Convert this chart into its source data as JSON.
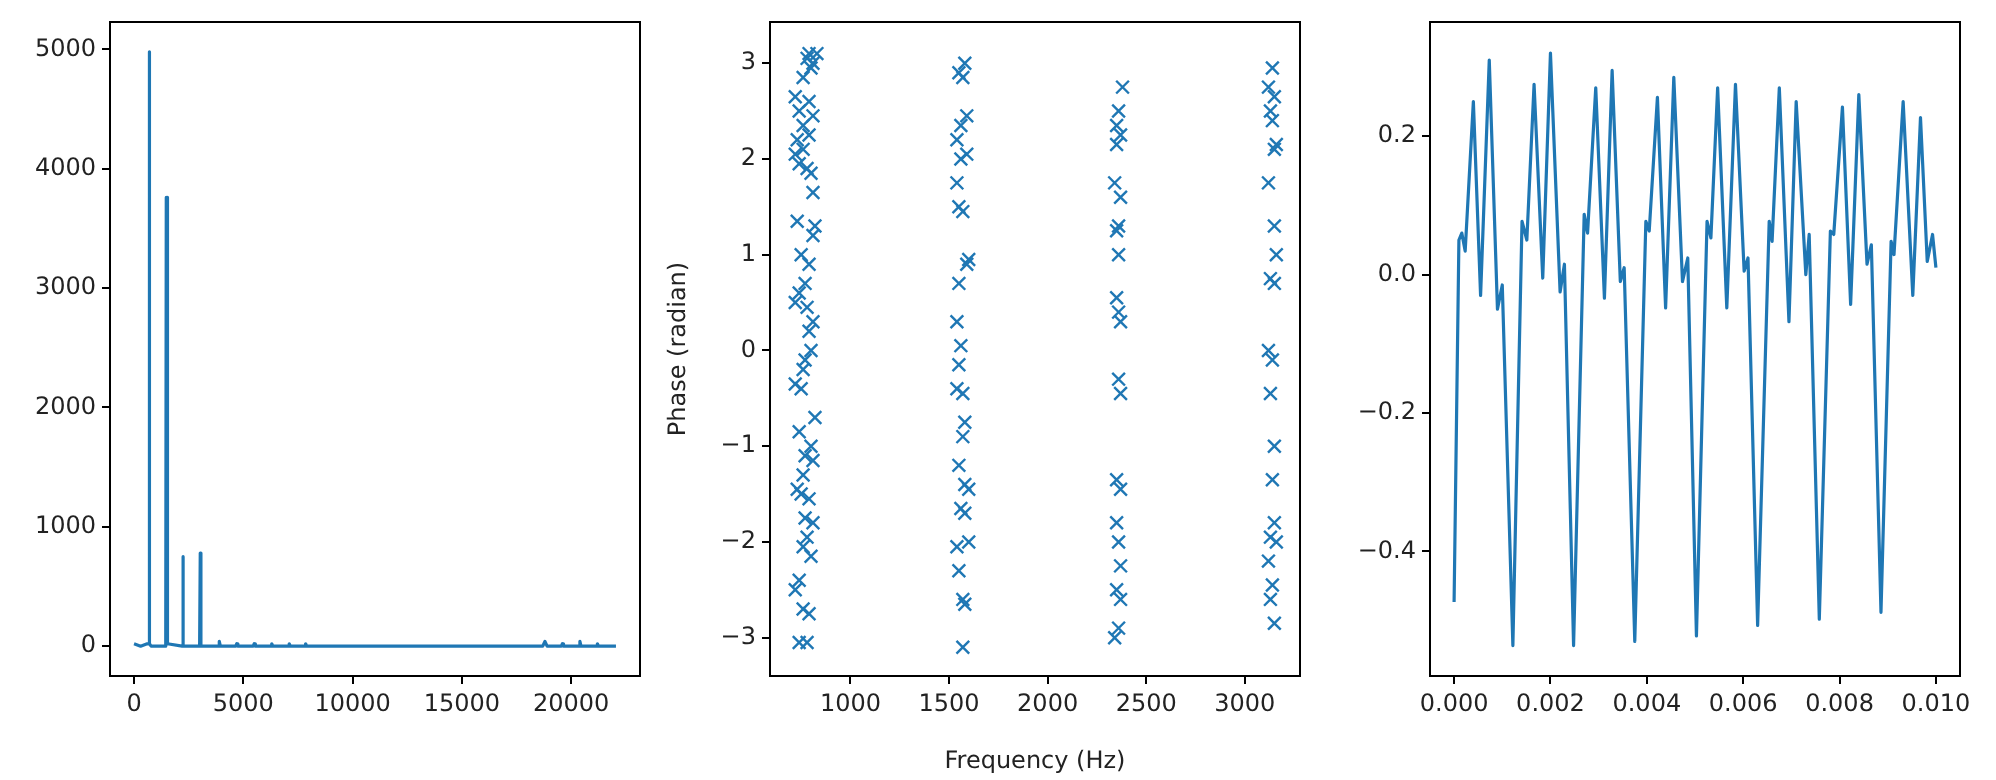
{
  "chart_data": [
    {
      "type": "line",
      "color": "#1f77b4",
      "xlim": [
        -1100,
        23150
      ],
      "ylim": [
        -250,
        5230
      ],
      "xticks": [
        0,
        5000,
        10000,
        15000,
        20000
      ],
      "yticks": [
        0,
        1000,
        2000,
        3000,
        4000,
        5000
      ],
      "x": [
        0,
        300,
        600,
        660,
        690,
        720,
        780,
        1400,
        1450,
        1475,
        1530,
        2200,
        2230,
        2260,
        3000,
        3030,
        3060,
        3850,
        3900,
        3950,
        4650,
        4700,
        4750,
        5450,
        5500,
        5550,
        6250,
        6300,
        6350,
        7050,
        7100,
        7150,
        7800,
        7850,
        7900,
        8600,
        18700,
        18800,
        18900,
        19550,
        19600,
        19650,
        20350,
        20400,
        20450,
        21150,
        21200,
        21250,
        22050
      ],
      "values": [
        20,
        0,
        20,
        20,
        4980,
        20,
        0,
        0,
        20,
        3760,
        20,
        0,
        750,
        0,
        0,
        780,
        0,
        0,
        40,
        0,
        0,
        20,
        0,
        0,
        20,
        0,
        0,
        20,
        0,
        0,
        20,
        0,
        0,
        20,
        0,
        0,
        0,
        40,
        0,
        0,
        20,
        0,
        0,
        40,
        0,
        0,
        20,
        0,
        0
      ]
    },
    {
      "type": "scatter",
      "color": "#1f77b4",
      "marker": "cross",
      "xlabel": "Frequency (Hz)",
      "ylabel": "Phase (radian)",
      "xlim": [
        592,
        3280
      ],
      "ylim": [
        -3.4,
        3.43
      ],
      "xticks": [
        1000,
        1500,
        2000,
        2500,
        3000
      ],
      "yticks": [
        {
          "value": -3,
          "label": "−3"
        },
        {
          "value": -2,
          "label": "−2"
        },
        {
          "value": -1,
          "label": "−1"
        },
        0,
        1,
        2,
        3
      ],
      "x": [
        790,
        830,
        780,
        810,
        800,
        760,
        720,
        790,
        740,
        810,
        760,
        730,
        790,
        720,
        760,
        740,
        800,
        780,
        810,
        730,
        820,
        810,
        750,
        790,
        770,
        740,
        720,
        780,
        810,
        790,
        800,
        770,
        760,
        720,
        750,
        820,
        740,
        800,
        770,
        810,
        760,
        730,
        750,
        790,
        770,
        810,
        780,
        760,
        800,
        740,
        720,
        790,
        760,
        740,
        780,
        1580,
        1550,
        1570,
        1590,
        1560,
        1540,
        1590,
        1560,
        1540,
        1550,
        1570,
        1600,
        1590,
        1550,
        1540,
        1560,
        1550,
        1540,
        1570,
        1580,
        1570,
        1550,
        1580,
        1600,
        1560,
        1580,
        1540,
        1600,
        1550,
        1570,
        1580,
        1570,
        2380,
        2360,
        2350,
        2370,
        2350,
        2340,
        2370,
        2360,
        2350,
        2360,
        2350,
        2360,
        2370,
        2360,
        2370,
        2350,
        2370,
        2350,
        2360,
        2370,
        2350,
        2370,
        2360,
        2340,
        3140,
        3120,
        3150,
        3130,
        3140,
        3160,
        3150,
        3120,
        3150,
        3160,
        3130,
        3150,
        3120,
        3140,
        3130,
        3150,
        3140,
        3150,
        3130,
        3160,
        3120,
        3140,
        3130,
        3150
      ],
      "values": [
        3.1,
        3.1,
        3.05,
        3.0,
        2.95,
        2.85,
        2.65,
        2.6,
        2.5,
        2.45,
        2.35,
        2.2,
        2.25,
        2.05,
        2.1,
        1.95,
        1.85,
        1.9,
        1.65,
        1.35,
        1.3,
        1.2,
        1.0,
        0.9,
        0.7,
        0.6,
        0.5,
        0.45,
        0.3,
        0.2,
        0.0,
        -0.1,
        -0.2,
        -0.35,
        -0.4,
        -0.7,
        -0.85,
        -1.0,
        -1.1,
        -1.15,
        -1.3,
        -1.45,
        -1.5,
        -1.55,
        -1.75,
        -1.8,
        -1.95,
        -2.05,
        -2.15,
        -2.4,
        -2.5,
        -2.75,
        -2.7,
        -3.05,
        -3.05,
        3.0,
        2.9,
        2.85,
        2.45,
        2.35,
        2.2,
        2.05,
        2.0,
        1.75,
        1.5,
        1.45,
        0.95,
        0.9,
        0.7,
        0.3,
        0.05,
        -0.15,
        -0.4,
        -0.45,
        -0.75,
        -0.9,
        -1.2,
        -1.4,
        -1.45,
        -1.65,
        -1.7,
        -2.05,
        -2.0,
        -2.3,
        -2.6,
        -2.65,
        -3.1,
        2.75,
        2.5,
        2.35,
        2.25,
        2.15,
        1.75,
        1.6,
        1.3,
        1.25,
        1.0,
        0.55,
        0.4,
        0.3,
        -0.3,
        -0.45,
        -1.35,
        -1.45,
        -1.8,
        -2.0,
        -2.25,
        -2.5,
        -2.6,
        -2.9,
        -3.0,
        2.95,
        2.75,
        2.65,
        2.5,
        2.4,
        2.15,
        2.1,
        1.75,
        1.3,
        1.0,
        0.75,
        0.7,
        0.0,
        -0.1,
        -0.45,
        -1.0,
        -1.35,
        -1.8,
        -1.95,
        -2.0,
        -2.2,
        -2.45,
        -2.6,
        -2.85
      ]
    },
    {
      "type": "line",
      "color": "#1f77b4",
      "xlim": [
        -0.0005,
        0.0105
      ],
      "ylim": [
        -0.58,
        0.365
      ],
      "xticks": [
        {
          "value": 0,
          "label": "0.000"
        },
        {
          "value": 0.002,
          "label": "0.002"
        },
        {
          "value": 0.004,
          "label": "0.004"
        },
        {
          "value": 0.006,
          "label": "0.006"
        },
        {
          "value": 0.008,
          "label": "0.008"
        },
        {
          "value": 0.01,
          "label": "0.010"
        }
      ],
      "yticks": [
        {
          "value": -0.4,
          "label": "−0.4"
        },
        {
          "value": -0.2,
          "label": "−0.2"
        },
        {
          "value": 0,
          "label": "0.0"
        },
        {
          "value": 0.2,
          "label": "0.2"
        }
      ],
      "x": [
        0,
        0.0001,
        0.00016,
        0.00023,
        0.0004,
        0.00055,
        0.00073,
        0.0009,
        0.001,
        0.00122,
        0.00141,
        0.00151,
        0.00166,
        0.00184,
        0.002,
        0.0022,
        0.00229,
        0.00248,
        0.0027,
        0.00277,
        0.00294,
        0.00312,
        0.00328,
        0.00345,
        0.00353,
        0.00375,
        0.00398,
        0.00405,
        0.00422,
        0.00439,
        0.00456,
        0.00474,
        0.00485,
        0.00503,
        0.00525,
        0.00533,
        0.00547,
        0.00566,
        0.00584,
        0.00602,
        0.0061,
        0.0063,
        0.00654,
        0.0066,
        0.00675,
        0.00695,
        0.0071,
        0.0073,
        0.00737,
        0.00758,
        0.00781,
        0.00788,
        0.00806,
        0.00823,
        0.0084,
        0.00857,
        0.00866,
        0.00886,
        0.00907,
        0.00913,
        0.00932,
        0.00952,
        0.00968,
        0.00982,
        0.00993,
        0.01
      ],
      "values": [
        -0.473,
        0.05,
        0.06,
        0.034,
        0.25,
        -0.03,
        0.31,
        -0.05,
        -0.015,
        -0.536,
        0.077,
        0.05,
        0.275,
        -0.005,
        0.32,
        -0.025,
        0.015,
        -0.536,
        0.087,
        0.06,
        0.27,
        -0.034,
        0.295,
        -0.01,
        0.01,
        -0.53,
        0.077,
        0.063,
        0.256,
        -0.048,
        0.285,
        -0.01,
        0.024,
        -0.522,
        0.077,
        0.053,
        0.27,
        -0.048,
        0.275,
        0.005,
        0.024,
        -0.507,
        0.077,
        0.048,
        0.27,
        -0.068,
        0.25,
        0.0,
        0.058,
        -0.498,
        0.063,
        0.058,
        0.242,
        -0.043,
        0.26,
        0.015,
        0.043,
        -0.488,
        0.048,
        0.029,
        0.25,
        -0.03,
        0.227,
        0.019,
        0.058,
        0.01
      ]
    }
  ]
}
